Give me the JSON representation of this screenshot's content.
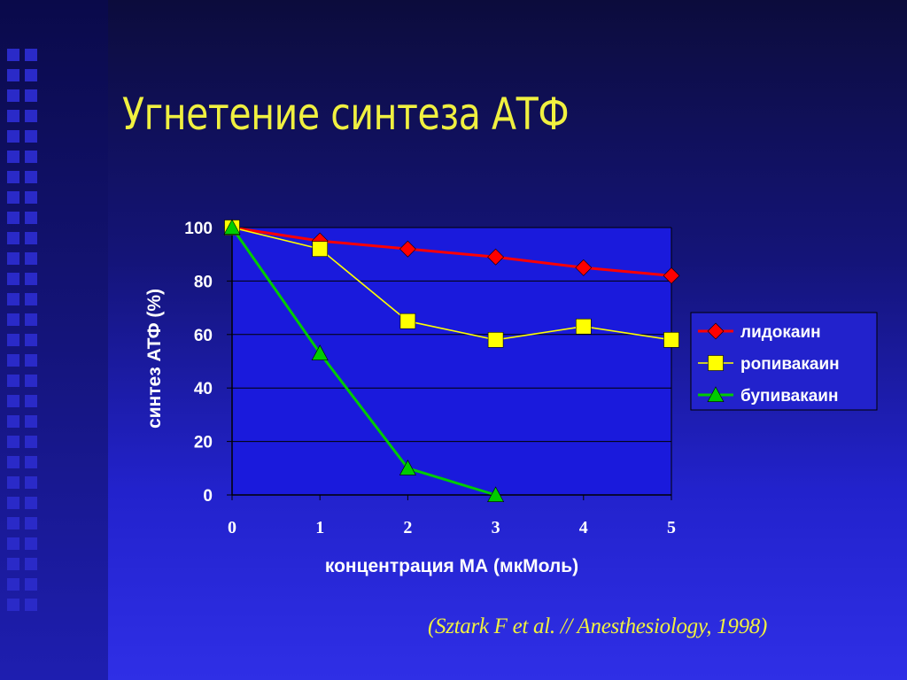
{
  "slide": {
    "title": "Угнетение синтеза АТФ",
    "citation": "(Sztark F et al. // Anesthesiology, 1998)"
  },
  "colors": {
    "title_text": "#f0f040",
    "plot_area": "#1a1adc",
    "axis_text": "#ffffff",
    "legend_bg": "#2222cc"
  },
  "chart_data": {
    "type": "line",
    "title": "",
    "xlabel": "концентрация МА (мкМоль)",
    "ylabel": "синтез АТФ (%)",
    "x": [
      0,
      1,
      2,
      3,
      4,
      5
    ],
    "x_tick_labels": [
      "0",
      "1",
      "2",
      "3",
      "4",
      "5"
    ],
    "y_tick_labels": [
      "0",
      "20",
      "40",
      "60",
      "80",
      "100"
    ],
    "xlim": [
      0,
      5
    ],
    "ylim": [
      0,
      100
    ],
    "y_grid": true,
    "legend_position": "right",
    "series": [
      {
        "name": "лидокаин",
        "color": "#ff0000",
        "marker": "diamond",
        "x": [
          0,
          1,
          2,
          3,
          4,
          5
        ],
        "values": [
          100,
          95,
          92,
          89,
          85,
          82
        ]
      },
      {
        "name": "ропивакаин",
        "color": "#ffff00",
        "marker": "square",
        "x": [
          0,
          1,
          2,
          3,
          4,
          5
        ],
        "values": [
          100,
          92,
          65,
          58,
          63,
          58
        ]
      },
      {
        "name": "бупивакаин",
        "color": "#00cc00",
        "marker": "triangle",
        "x": [
          0,
          1,
          2,
          3
        ],
        "values": [
          100,
          53,
          10,
          0
        ]
      }
    ]
  }
}
